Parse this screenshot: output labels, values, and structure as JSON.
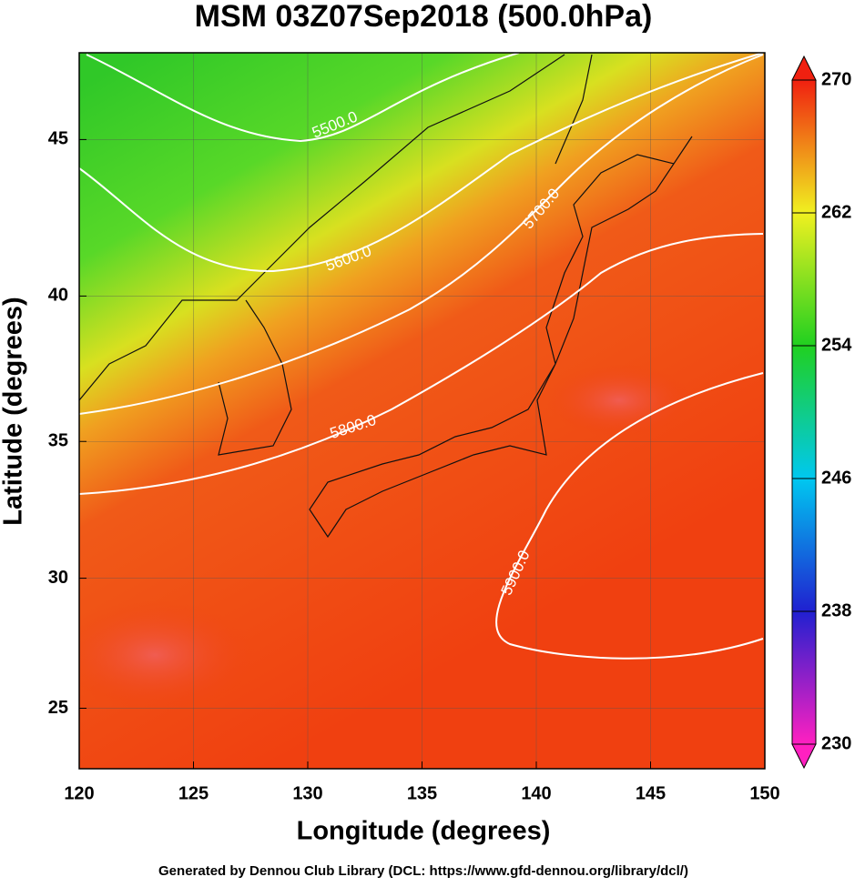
{
  "title": "MSM 03Z07Sep2018 (500.0hPa)",
  "map": {
    "projection": "mercator",
    "xlim": [
      120,
      150
    ],
    "ylim": [
      22.6,
      47.6
    ],
    "xticks": [
      120,
      125,
      130,
      135,
      140,
      145,
      150
    ],
    "yticks": [
      25,
      30,
      35,
      40,
      45
    ],
    "xlabel": "Longitude (degrees)",
    "ylabel": "Latitude  (degrees)"
  },
  "colorbar": {
    "lim": [
      230,
      270
    ],
    "ticks": [
      230,
      238,
      246,
      254,
      262,
      270
    ],
    "colors": [
      "#ff20c0",
      "#2020d0",
      "#00c8f0",
      "#20d020",
      "#f0f020",
      "#f02010"
    ]
  },
  "contours": [
    {
      "value": 5500,
      "label": "5500.0"
    },
    {
      "value": 5600,
      "label": "5600.0"
    },
    {
      "value": 5700,
      "label": "5700.0"
    },
    {
      "value": 5800,
      "label": "5800.0"
    },
    {
      "value": 5900,
      "label": "5900.0"
    }
  ],
  "footer": "Generated by Dennou Club Library (DCL: https://www.gfd-dennou.org/library/dcl/)"
}
